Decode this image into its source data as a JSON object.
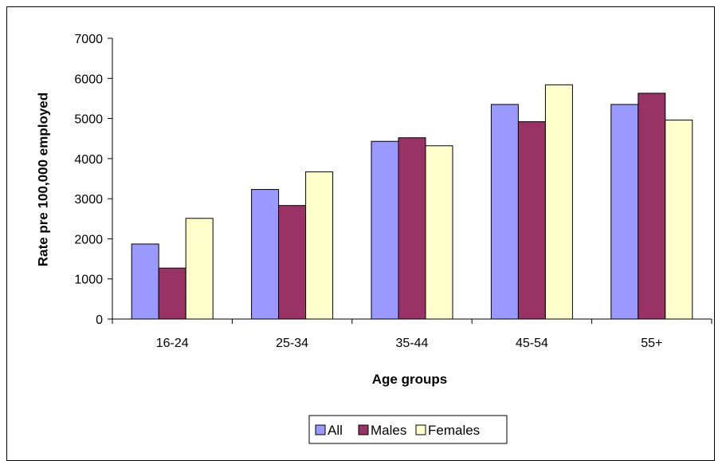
{
  "chart_data": {
    "type": "bar",
    "title": "",
    "xlabel": "Age groups",
    "ylabel": "Rate pre 100,000 employed",
    "categories": [
      "16-24",
      "25-34",
      "35-44",
      "45-54",
      "55+"
    ],
    "ylim": [
      0,
      7000
    ],
    "yticks": [
      0,
      1000,
      2000,
      3000,
      4000,
      5000,
      6000,
      7000
    ],
    "grid": false,
    "legend_position": "bottom",
    "series": [
      {
        "name": "All",
        "color": "#9999ff",
        "values": [
          1870,
          3230,
          4430,
          5350,
          5350
        ]
      },
      {
        "name": "Males",
        "color": "#993366",
        "values": [
          1270,
          2830,
          4520,
          4920,
          5630
        ]
      },
      {
        "name": "Females",
        "color": "#ffffcc",
        "values": [
          2510,
          3670,
          4320,
          5840,
          4960
        ]
      }
    ]
  }
}
